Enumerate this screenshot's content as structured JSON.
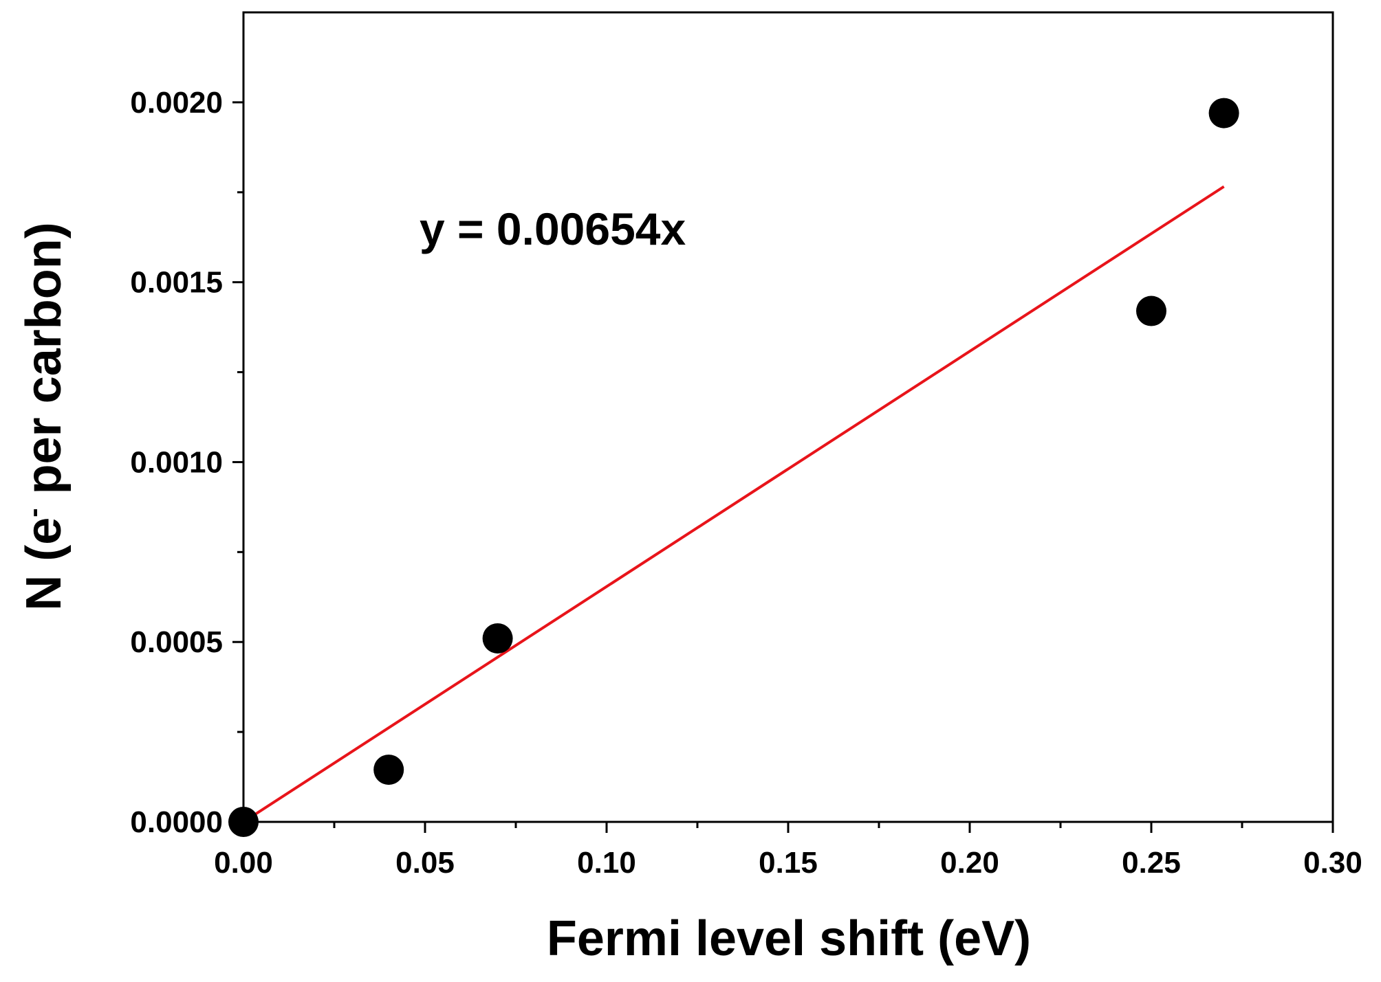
{
  "chart_data": {
    "type": "scatter",
    "xlabel": "Fermi level shift (eV)",
    "ylabel": {
      "prefix": "N (e",
      "superscript": "-",
      "suffix": " per carbon)"
    },
    "xlim": [
      0,
      0.3
    ],
    "ylim": [
      0,
      0.00225
    ],
    "x_ticks": [
      "0.00",
      "0.05",
      "0.10",
      "0.15",
      "0.20",
      "0.25",
      "0.30"
    ],
    "y_ticks": [
      "0.0000",
      "0.0005",
      "0.0010",
      "0.0015",
      "0.0020"
    ],
    "grid": false,
    "series": [
      {
        "kind": "points",
        "color": "#000000",
        "points": [
          {
            "x": 0.0,
            "y": 0.0
          },
          {
            "x": 0.04,
            "y": 0.000145
          },
          {
            "x": 0.07,
            "y": 0.00051
          },
          {
            "x": 0.25,
            "y": 0.00142
          },
          {
            "x": 0.27,
            "y": 0.00197
          }
        ]
      },
      {
        "kind": "fit-line",
        "color": "#e8141a",
        "slope": 0.00654,
        "x_range": [
          0,
          0.27
        ]
      }
    ],
    "annotation": "y = 0.00654x"
  }
}
